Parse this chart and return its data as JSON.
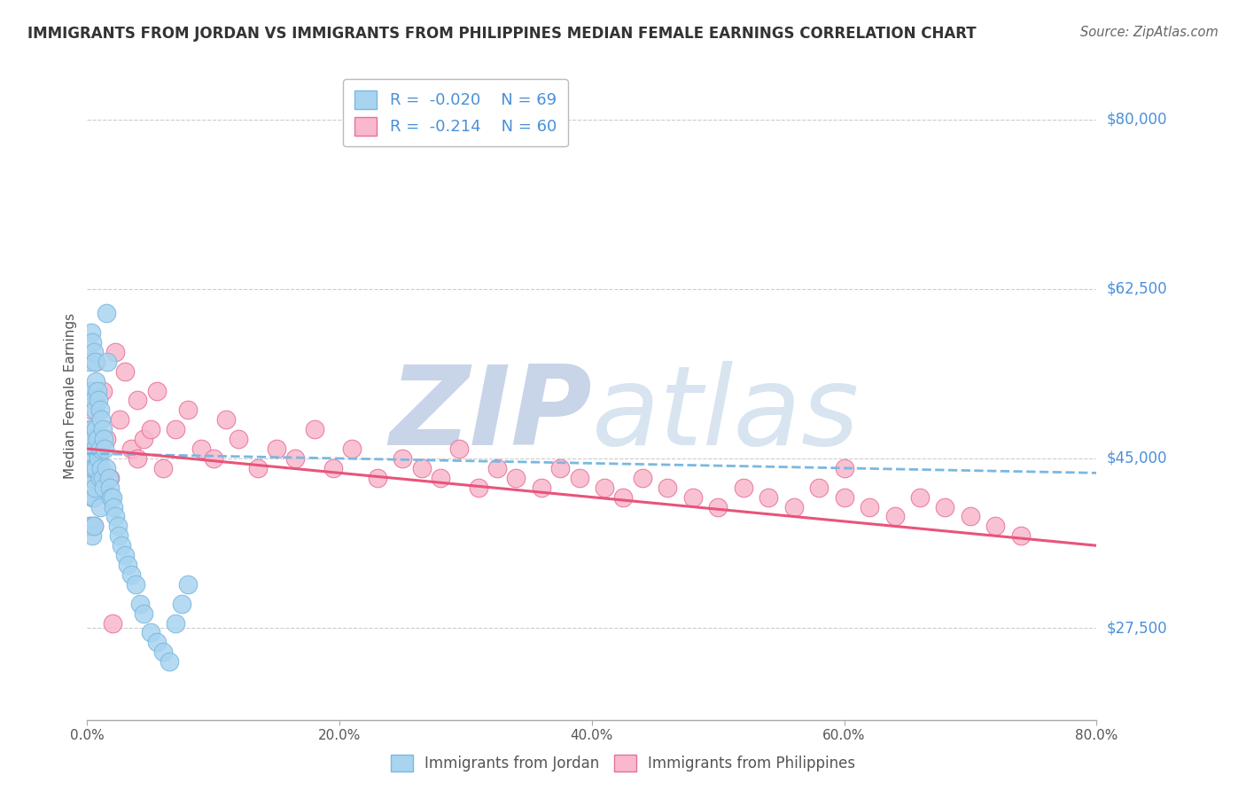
{
  "title": "IMMIGRANTS FROM JORDAN VS IMMIGRANTS FROM PHILIPPINES MEDIAN FEMALE EARNINGS CORRELATION CHART",
  "source": "Source: ZipAtlas.com",
  "ylabel": "Median Female Earnings",
  "xlim": [
    0.0,
    0.8
  ],
  "ylim": [
    18000,
    85000
  ],
  "yticks": [
    27500,
    45000,
    62500,
    80000
  ],
  "ytick_labels": [
    "$27,500",
    "$45,000",
    "$62,500",
    "$80,000"
  ],
  "xticks": [
    0.0,
    0.2,
    0.4,
    0.6,
    0.8
  ],
  "xtick_labels": [
    "0.0%",
    "20.0%",
    "40.0%",
    "60.0%",
    "80.0%"
  ],
  "jordan_R": -0.02,
  "jordan_N": 69,
  "philippines_R": -0.214,
  "philippines_N": 60,
  "jordan_x": [
    0.001,
    0.001,
    0.002,
    0.002,
    0.002,
    0.003,
    0.003,
    0.003,
    0.003,
    0.003,
    0.004,
    0.004,
    0.004,
    0.004,
    0.004,
    0.004,
    0.005,
    0.005,
    0.005,
    0.005,
    0.005,
    0.005,
    0.006,
    0.006,
    0.006,
    0.006,
    0.007,
    0.007,
    0.007,
    0.008,
    0.008,
    0.009,
    0.009,
    0.01,
    0.01,
    0.01,
    0.01,
    0.011,
    0.011,
    0.012,
    0.012,
    0.013,
    0.013,
    0.014,
    0.015,
    0.015,
    0.016,
    0.017,
    0.018,
    0.019,
    0.02,
    0.021,
    0.022,
    0.024,
    0.025,
    0.027,
    0.03,
    0.032,
    0.035,
    0.038,
    0.042,
    0.045,
    0.05,
    0.055,
    0.06,
    0.065,
    0.07,
    0.075,
    0.08
  ],
  "jordan_y": [
    45000,
    43000,
    55000,
    48000,
    38000,
    58000,
    52000,
    47000,
    43000,
    38000,
    57000,
    52000,
    48000,
    44000,
    41000,
    37000,
    56000,
    51000,
    47000,
    44000,
    41000,
    38000,
    55000,
    50000,
    46000,
    42000,
    53000,
    48000,
    44000,
    52000,
    47000,
    51000,
    45000,
    50000,
    46000,
    43000,
    40000,
    49000,
    44000,
    48000,
    43000,
    47000,
    42000,
    46000,
    60000,
    44000,
    55000,
    43000,
    42000,
    41000,
    41000,
    40000,
    39000,
    38000,
    37000,
    36000,
    35000,
    34000,
    33000,
    32000,
    30000,
    29000,
    27000,
    26000,
    25000,
    24000,
    28000,
    30000,
    32000
  ],
  "philippines_x": [
    0.003,
    0.005,
    0.007,
    0.009,
    0.012,
    0.015,
    0.018,
    0.022,
    0.026,
    0.03,
    0.035,
    0.04,
    0.045,
    0.05,
    0.055,
    0.06,
    0.07,
    0.08,
    0.09,
    0.1,
    0.11,
    0.12,
    0.135,
    0.15,
    0.165,
    0.18,
    0.195,
    0.21,
    0.23,
    0.25,
    0.265,
    0.28,
    0.295,
    0.31,
    0.325,
    0.34,
    0.36,
    0.375,
    0.39,
    0.41,
    0.425,
    0.44,
    0.46,
    0.48,
    0.5,
    0.52,
    0.54,
    0.56,
    0.58,
    0.6,
    0.62,
    0.64,
    0.66,
    0.68,
    0.7,
    0.72,
    0.74,
    0.04,
    0.02,
    0.6
  ],
  "philippines_y": [
    50000,
    38000,
    55000,
    44000,
    52000,
    47000,
    43000,
    56000,
    49000,
    54000,
    46000,
    51000,
    47000,
    48000,
    52000,
    44000,
    48000,
    50000,
    46000,
    45000,
    49000,
    47000,
    44000,
    46000,
    45000,
    48000,
    44000,
    46000,
    43000,
    45000,
    44000,
    43000,
    46000,
    42000,
    44000,
    43000,
    42000,
    44000,
    43000,
    42000,
    41000,
    43000,
    42000,
    41000,
    40000,
    42000,
    41000,
    40000,
    42000,
    41000,
    40000,
    39000,
    41000,
    40000,
    39000,
    38000,
    37000,
    45000,
    28000,
    44000
  ],
  "jordan_scatter_color": "#a8d4f0",
  "jordan_scatter_edge": "#7ab8e0",
  "jordan_line_color": "#7ab8e0",
  "philippines_scatter_color": "#f9b8cc",
  "philippines_scatter_edge": "#e87099",
  "philippines_line_color": "#e8547a",
  "blue_color": "#4a90d9",
  "title_color": "#333333",
  "source_color": "#666666",
  "watermark_color": "#dde4ef",
  "background_color": "#ffffff",
  "grid_color": "#cccccc",
  "axis_color": "#aaaaaa",
  "legend_label_color": "#4a90d9"
}
